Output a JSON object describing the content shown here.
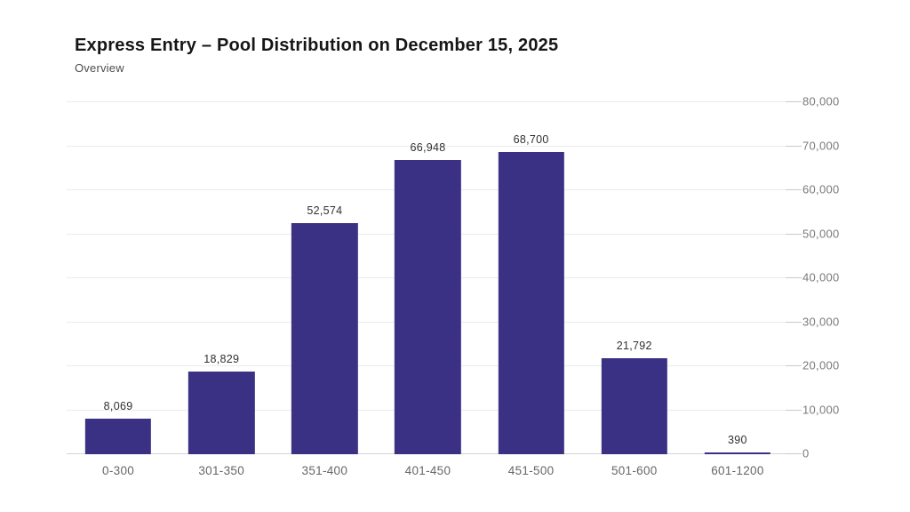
{
  "header": {
    "title": "Express Entry – Pool Distribution on December 15, 2025",
    "subtitle": "Overview"
  },
  "colors": {
    "bar": "#3b3184",
    "grid": "#ececec",
    "baseline": "#d4d4d4",
    "tick_dash": "#c9c9c9",
    "y_axis_label": "#7a7a7a",
    "x_axis_label": "#666666",
    "value_label": "#303030",
    "title": "#161616",
    "subtitle": "#4d4d4d",
    "background": "#ffffff"
  },
  "chart_data": {
    "type": "bar",
    "title": "Express Entry – Pool Distribution on December 15, 2025",
    "subtitle": "Overview",
    "categories": [
      "0-300",
      "301-350",
      "351-400",
      "401-450",
      "451-500",
      "501-600",
      "601-1200"
    ],
    "values": [
      8069,
      18829,
      52574,
      66948,
      68700,
      21792,
      390
    ],
    "value_labels": [
      "8,069",
      "18,829",
      "52,574",
      "66,948",
      "68,700",
      "21,792",
      "390"
    ],
    "xlabel": "",
    "ylabel": "",
    "ylim": [
      0,
      80000
    ],
    "y_tick_step": 10000,
    "y_tick_values": [
      0,
      10000,
      20000,
      30000,
      40000,
      50000,
      60000,
      70000,
      80000
    ],
    "y_tick_labels": [
      "0",
      "10,000",
      "20,000",
      "30,000",
      "40,000",
      "50,000",
      "60,000",
      "70,000",
      "80,000"
    ],
    "y_axis_side": "right",
    "grid": true,
    "legend": false,
    "bar_color": "#3b3184"
  }
}
